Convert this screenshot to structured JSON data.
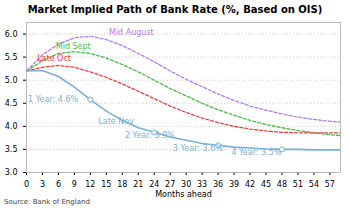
{
  "chart_data": {
    "type": "line",
    "title": "Market Implied Path of Bank Rate (%, Based on OIS)",
    "xlabel": "Months ahead",
    "caption": "Source: Bank of England",
    "x": [
      0,
      3,
      6,
      9,
      12,
      15,
      18,
      21,
      24,
      27,
      30,
      33,
      36,
      39,
      42,
      45,
      48,
      51,
      54,
      57,
      59
    ],
    "series": [
      {
        "name": "Mid August",
        "color": "#b57bee",
        "line_style": "dashed",
        "values": [
          5.2,
          5.55,
          5.78,
          5.92,
          5.95,
          5.88,
          5.75,
          5.58,
          5.4,
          5.2,
          5.02,
          4.86,
          4.7,
          4.56,
          4.44,
          4.35,
          4.27,
          4.2,
          4.15,
          4.11,
          4.09
        ]
      },
      {
        "name": "Mid Sept",
        "color": "#4db84d",
        "line_style": "dashed",
        "values": [
          5.2,
          5.42,
          5.58,
          5.62,
          5.58,
          5.48,
          5.34,
          5.18,
          5.0,
          4.82,
          4.66,
          4.5,
          4.36,
          4.24,
          4.13,
          4.04,
          3.97,
          3.91,
          3.86,
          3.82,
          3.8
        ]
      },
      {
        "name": "Late Oct",
        "color": "#e84040",
        "line_style": "dashed",
        "values": [
          5.2,
          5.28,
          5.32,
          5.28,
          5.18,
          5.06,
          4.92,
          4.76,
          4.6,
          4.44,
          4.3,
          4.18,
          4.08,
          4.0,
          3.94,
          3.9,
          3.87,
          3.86,
          3.86,
          3.86,
          3.86
        ]
      },
      {
        "name": "Late Nov",
        "color": "#7bafd4",
        "line_style": "solid",
        "marker": "circle",
        "marker_x": [
          12,
          24,
          36,
          48
        ],
        "values": [
          5.2,
          5.21,
          5.08,
          4.85,
          4.58,
          4.33,
          4.13,
          3.97,
          3.87,
          3.77,
          3.7,
          3.63,
          3.59,
          3.55,
          3.53,
          3.51,
          3.5,
          3.5,
          3.49,
          3.49,
          3.49
        ]
      }
    ],
    "annotations": [
      {
        "x": 15.5,
        "y": 5.97,
        "text": "Mid August",
        "color": "#b57bee"
      },
      {
        "x": 5.5,
        "y": 5.67,
        "text": "Mid Sept",
        "color": "#4db84d"
      },
      {
        "x": 2.0,
        "y": 5.41,
        "text": "Late Oct",
        "color": "#e84040"
      },
      {
        "x": 13.5,
        "y": 4.06,
        "text": "Late Nov",
        "color": "#7bafd4"
      },
      {
        "x": 0.3,
        "y": 4.53,
        "text": "1 Year: 4.6%",
        "color": "#7bafd4"
      },
      {
        "x": 18.5,
        "y": 3.74,
        "text": "2 Year: 3.9%",
        "color": "#7bafd4"
      },
      {
        "x": 27.5,
        "y": 3.47,
        "text": "3 Year: 3.6%",
        "color": "#7bafd4"
      },
      {
        "x": 38.5,
        "y": 3.39,
        "text": "4 Year: 3.5%",
        "color": "#7bafd4"
      }
    ],
    "xlim": [
      0,
      59
    ],
    "xticks": [
      0,
      3,
      6,
      9,
      12,
      15,
      18,
      21,
      24,
      27,
      30,
      33,
      36,
      39,
      42,
      45,
      48,
      51,
      54,
      57
    ],
    "ylim": [
      3.0,
      6.25
    ],
    "yticks": [
      {
        "value": 3.0,
        "label": "3.0"
      },
      3.5,
      {
        "value": 4.0,
        "label": "4.0"
      },
      4.5,
      {
        "value": 5.0,
        "label": "5.0"
      },
      5.5,
      {
        "value": 6.0,
        "label": "6.0"
      }
    ],
    "grid": "y"
  }
}
